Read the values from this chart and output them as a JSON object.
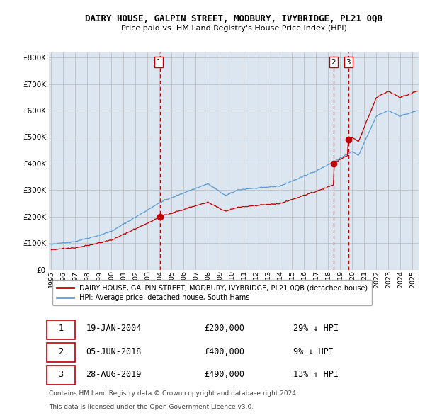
{
  "title": "DAIRY HOUSE, GALPIN STREET, MODBURY, IVYBRIDGE, PL21 0QB",
  "subtitle": "Price paid vs. HM Land Registry's House Price Index (HPI)",
  "hpi_label": "HPI: Average price, detached house, South Hams",
  "house_label": "DAIRY HOUSE, GALPIN STREET, MODBURY, IVYBRIDGE, PL21 0QB (detached house)",
  "footnote1": "Contains HM Land Registry data © Crown copyright and database right 2024.",
  "footnote2": "This data is licensed under the Open Government Licence v3.0.",
  "sale_events": [
    {
      "num": 1,
      "date": "19-JAN-2004",
      "price": 200000,
      "pct": "29%",
      "dir": "↓"
    },
    {
      "num": 2,
      "date": "05-JUN-2018",
      "price": 400000,
      "pct": "9%",
      "dir": "↓"
    },
    {
      "num": 3,
      "date": "28-AUG-2019",
      "price": 490000,
      "pct": "13%",
      "dir": "↑"
    }
  ],
  "hpi_color": "#5b9bd5",
  "house_color": "#c00000",
  "sale_vline_color": "#c00000",
  "grid_color": "#b8b8b8",
  "chart_bg": "#dce6f1",
  "background_color": "#ffffff",
  "ylim": [
    0,
    820000
  ],
  "yticks": [
    0,
    100000,
    200000,
    300000,
    400000,
    500000,
    600000,
    700000,
    800000
  ],
  "ytick_labels": [
    "£0",
    "£100K",
    "£200K",
    "£300K",
    "£400K",
    "£500K",
    "£600K",
    "£700K",
    "£800K"
  ],
  "xstart": 1995,
  "xend": 2025
}
